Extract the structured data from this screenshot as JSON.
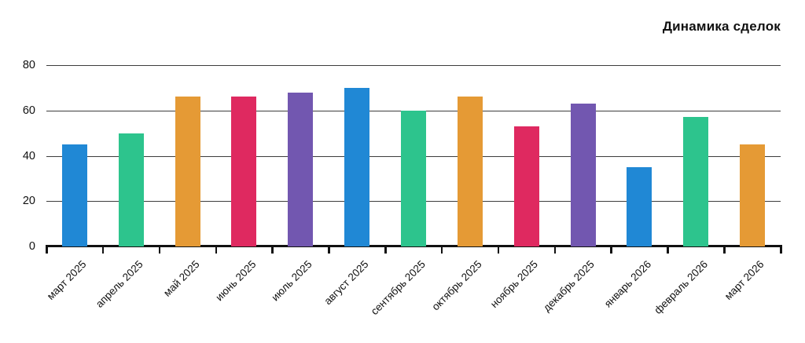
{
  "title": "Динамика сделок",
  "chart_data": {
    "type": "bar",
    "title": "Динамика сделок",
    "categories": [
      "март 2025",
      "апрель 2025",
      "май 2025",
      "июнь 2025",
      "июль 2025",
      "август 2025",
      "сентябрь 2025",
      "октябрь 2025",
      "ноябрь 2025",
      "декабрь 2025",
      "январь 2026",
      "февраль 2026",
      "март 2026"
    ],
    "values": [
      45,
      50,
      66,
      66,
      68,
      70,
      60,
      66,
      53,
      63,
      35,
      57,
      45
    ],
    "xlabel": "",
    "ylabel": "",
    "ylim": [
      0,
      80
    ],
    "yticks": [
      0,
      20,
      40,
      60,
      80
    ],
    "grid": true,
    "legend": "none",
    "bar_colors_cycle": [
      "#2088d5",
      "#2dc48d",
      "#e59a35",
      "#df2960",
      "#7257b0"
    ],
    "axis_color": "#111111",
    "gridline_color": "#3d3d3d",
    "text_color": "#111111"
  }
}
